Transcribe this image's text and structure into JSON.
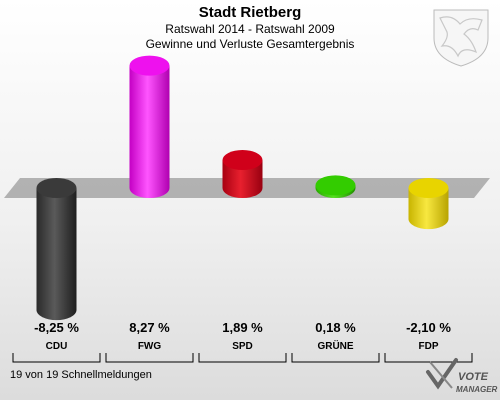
{
  "chart_data": {
    "type": "bar",
    "title": "Stadt Rietberg",
    "subtitle_1": "Ratswahl 2014 - Ratswahl 2009",
    "subtitle_2": "Gewinne und Verluste Gesamtergebnis",
    "categories": [
      "CDU",
      "FWG",
      "SPD",
      "GRÜNE",
      "FDP"
    ],
    "values": [
      -8.25,
      8.27,
      1.89,
      0.18,
      -2.1
    ],
    "value_labels": [
      "-8,25 %",
      "8,27 %",
      "1,89 %",
      "0,18 %",
      "-2,10 %"
    ],
    "colors": [
      "#3a3a3a",
      "#ee11ee",
      "#d0001a",
      "#33cc00",
      "#e8d400"
    ],
    "ylim": [
      -9,
      9
    ]
  },
  "footer": {
    "note": "19 von 19 Schnellmeldungen",
    "logo_line1": "VOTE",
    "logo_line2": "MANAGER"
  }
}
